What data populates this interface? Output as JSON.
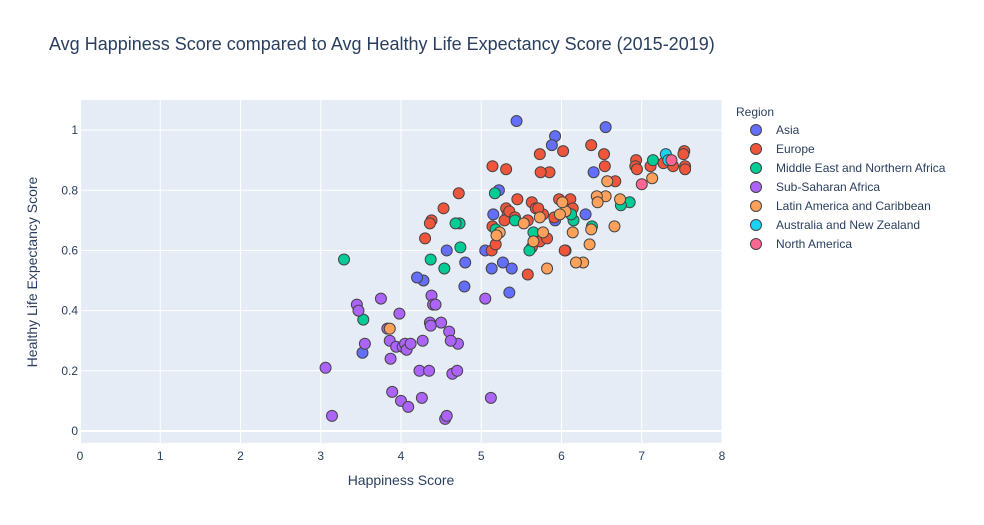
{
  "chart_data": {
    "type": "scatter",
    "title": "Avg Happiness Score compared to Avg Healthy Life Expectancy Score (2015-2019)",
    "xlabel": "Happiness Score",
    "ylabel": "Healthy Life Expectancy Score",
    "xlim": [
      0,
      8
    ],
    "ylim": [
      -0.04,
      1.1
    ],
    "xticks": [
      0,
      1,
      2,
      3,
      4,
      5,
      6,
      7,
      8
    ],
    "yticks": [
      0,
      0.2,
      0.4,
      0.6,
      0.8,
      1
    ],
    "grid": true,
    "legend": {
      "title": "Region",
      "placement": "right"
    },
    "series": [
      {
        "name": "Asia",
        "color": "#636efa",
        "points": [
          [
            5.44,
            1.03
          ],
          [
            6.55,
            1.01
          ],
          [
            5.92,
            0.98
          ],
          [
            5.88,
            0.95
          ],
          [
            6.4,
            0.86
          ],
          [
            5.22,
            0.8
          ],
          [
            5.15,
            0.72
          ],
          [
            5.92,
            0.7
          ],
          [
            6.3,
            0.72
          ],
          [
            4.57,
            0.6
          ],
          [
            4.28,
            0.5
          ],
          [
            4.2,
            0.51
          ],
          [
            4.8,
            0.56
          ],
          [
            5.27,
            0.56
          ],
          [
            5.13,
            0.54
          ],
          [
            5.38,
            0.54
          ],
          [
            5.35,
            0.46
          ],
          [
            4.79,
            0.48
          ],
          [
            3.52,
            0.26
          ],
          [
            5.05,
            0.6
          ],
          [
            6.05,
            0.6
          ]
        ]
      },
      {
        "name": "Europe",
        "color": "#ef553b",
        "points": [
          [
            7.53,
            0.93
          ],
          [
            7.52,
            0.92
          ],
          [
            7.54,
            0.88
          ],
          [
            7.54,
            0.87
          ],
          [
            7.39,
            0.88
          ],
          [
            7.27,
            0.89
          ],
          [
            7.11,
            0.88
          ],
          [
            6.93,
            0.9
          ],
          [
            6.92,
            0.88
          ],
          [
            6.94,
            0.87
          ],
          [
            6.53,
            0.92
          ],
          [
            6.37,
            0.95
          ],
          [
            6.02,
            0.93
          ],
          [
            5.73,
            0.92
          ],
          [
            5.85,
            0.86
          ],
          [
            5.74,
            0.86
          ],
          [
            6.54,
            0.88
          ],
          [
            6.67,
            0.83
          ],
          [
            5.14,
            0.88
          ],
          [
            5.31,
            0.87
          ],
          [
            6.11,
            0.77
          ],
          [
            6.14,
            0.74
          ],
          [
            5.97,
            0.77
          ],
          [
            5.45,
            0.77
          ],
          [
            5.31,
            0.74
          ],
          [
            5.33,
            0.72
          ],
          [
            5.29,
            0.7
          ],
          [
            5.35,
            0.73
          ],
          [
            5.42,
            0.71
          ],
          [
            5.63,
            0.76
          ],
          [
            5.68,
            0.74
          ],
          [
            5.77,
            0.72
          ],
          [
            4.72,
            0.79
          ],
          [
            4.53,
            0.74
          ],
          [
            4.38,
            0.7
          ],
          [
            4.36,
            0.69
          ],
          [
            4.3,
            0.64
          ],
          [
            5.58,
            0.7
          ],
          [
            5.14,
            0.68
          ],
          [
            5.13,
            0.6
          ],
          [
            5.18,
            0.62
          ],
          [
            5.63,
            0.61
          ],
          [
            5.73,
            0.63
          ],
          [
            5.82,
            0.64
          ],
          [
            6.04,
            0.6
          ],
          [
            5.58,
            0.52
          ],
          [
            5.91,
            0.71
          ],
          [
            5.71,
            0.74
          ]
        ]
      },
      {
        "name": "Middle East and Northern Africa",
        "color": "#00cc96",
        "points": [
          [
            7.14,
            0.9
          ],
          [
            6.85,
            0.76
          ],
          [
            6.74,
            0.75
          ],
          [
            6.38,
            0.68
          ],
          [
            6.15,
            0.7
          ],
          [
            6.12,
            0.72
          ],
          [
            5.65,
            0.66
          ],
          [
            5.42,
            0.7
          ],
          [
            5.18,
            0.67
          ],
          [
            5.17,
            0.79
          ],
          [
            4.73,
            0.69
          ],
          [
            4.68,
            0.69
          ],
          [
            4.74,
            0.61
          ],
          [
            4.54,
            0.54
          ],
          [
            4.37,
            0.57
          ],
          [
            5.6,
            0.6
          ],
          [
            3.53,
            0.37
          ],
          [
            3.29,
            0.57
          ]
        ]
      },
      {
        "name": "Sub-Saharan Africa",
        "color": "#ab63fa",
        "points": [
          [
            3.06,
            0.21
          ],
          [
            3.14,
            0.05
          ],
          [
            3.45,
            0.42
          ],
          [
            3.47,
            0.4
          ],
          [
            3.55,
            0.29
          ],
          [
            3.75,
            0.44
          ],
          [
            3.83,
            0.34
          ],
          [
            3.86,
            0.3
          ],
          [
            3.87,
            0.24
          ],
          [
            3.89,
            0.13
          ],
          [
            3.94,
            0.28
          ],
          [
            3.98,
            0.39
          ],
          [
            4.0,
            0.1
          ],
          [
            4.02,
            0.28
          ],
          [
            4.05,
            0.29
          ],
          [
            4.07,
            0.27
          ],
          [
            4.09,
            0.08
          ],
          [
            4.12,
            0.29
          ],
          [
            4.23,
            0.2
          ],
          [
            4.26,
            0.11
          ],
          [
            4.27,
            0.3
          ],
          [
            4.35,
            0.2
          ],
          [
            4.36,
            0.36
          ],
          [
            4.37,
            0.35
          ],
          [
            4.38,
            0.45
          ],
          [
            4.4,
            0.42
          ],
          [
            4.43,
            0.42
          ],
          [
            4.5,
            0.36
          ],
          [
            4.55,
            0.04
          ],
          [
            4.57,
            0.05
          ],
          [
            4.6,
            0.33
          ],
          [
            4.64,
            0.19
          ],
          [
            4.7,
            0.2
          ],
          [
            4.71,
            0.29
          ],
          [
            5.05,
            0.44
          ],
          [
            5.12,
            0.11
          ],
          [
            4.62,
            0.3
          ]
        ]
      },
      {
        "name": "Latin America and Caribbean",
        "color": "#ffa15a",
        "points": [
          [
            7.13,
            0.84
          ],
          [
            6.73,
            0.77
          ],
          [
            6.66,
            0.68
          ],
          [
            6.57,
            0.83
          ],
          [
            6.55,
            0.78
          ],
          [
            6.44,
            0.78
          ],
          [
            6.45,
            0.76
          ],
          [
            6.37,
            0.67
          ],
          [
            6.35,
            0.62
          ],
          [
            6.27,
            0.56
          ],
          [
            6.18,
            0.56
          ],
          [
            6.14,
            0.66
          ],
          [
            6.05,
            0.73
          ],
          [
            6.01,
            0.76
          ],
          [
            5.98,
            0.72
          ],
          [
            5.82,
            0.54
          ],
          [
            5.77,
            0.66
          ],
          [
            5.73,
            0.71
          ],
          [
            5.65,
            0.63
          ],
          [
            5.53,
            0.69
          ],
          [
            5.23,
            0.66
          ],
          [
            5.19,
            0.65
          ],
          [
            3.86,
            0.34
          ]
        ]
      },
      {
        "name": "Australia and New Zealand",
        "color": "#19d3f3",
        "points": [
          [
            7.3,
            0.92
          ],
          [
            7.33,
            0.9
          ]
        ]
      },
      {
        "name": "North America",
        "color": "#ff6692",
        "points": [
          [
            7.37,
            0.9
          ],
          [
            7.0,
            0.82
          ]
        ]
      }
    ]
  }
}
